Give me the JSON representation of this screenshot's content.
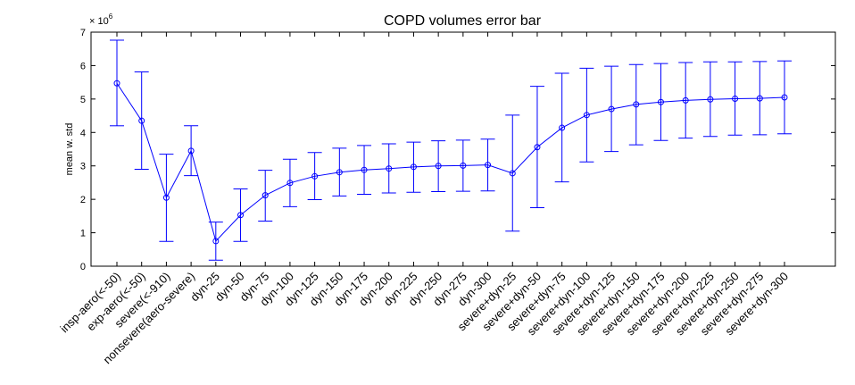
{
  "chart_data": {
    "type": "line",
    "title": "COPD volumes error bar",
    "ylabel": "mean w. std",
    "y_multiplier_base": "× 10",
    "y_multiplier_exp": "6",
    "ylim": [
      0,
      7
    ],
    "yticks": [
      "0",
      "1",
      "2",
      "3",
      "4",
      "5",
      "6",
      "7"
    ],
    "grid": false,
    "categories": [
      "insp-aero(<-50)",
      "exp-aero(<-50)",
      "severe(<-910)",
      "nonsevere(aero-severe)",
      "dyn-25",
      "dyn-50",
      "dyn-75",
      "dyn-100",
      "dyn-125",
      "dyn-150",
      "dyn-175",
      "dyn-200",
      "dyn-225",
      "dyn-250",
      "dyn-275",
      "dyn-300",
      "severe+dyn-25",
      "severe+dyn-50",
      "severe+dyn-75",
      "severe+dyn-100",
      "severe+dyn-125",
      "severe+dyn-150",
      "severe+dyn-175",
      "severe+dyn-200",
      "severe+dyn-225",
      "severe+dyn-250",
      "severe+dyn-275",
      "severe+dyn-300"
    ],
    "series": [
      {
        "color": "#0000ff",
        "values": [
          5.47,
          4.35,
          2.05,
          3.45,
          0.75,
          1.53,
          2.12,
          2.49,
          2.69,
          2.81,
          2.88,
          2.92,
          2.97,
          3.0,
          3.01,
          3.03,
          2.78,
          3.56,
          4.14,
          4.52,
          4.7,
          4.84,
          4.91,
          4.96,
          4.99,
          5.01,
          5.02,
          5.05
        ],
        "lower": [
          4.2,
          2.9,
          0.74,
          2.71,
          0.18,
          0.74,
          1.35,
          1.78,
          1.99,
          2.1,
          2.15,
          2.19,
          2.21,
          2.23,
          2.24,
          2.25,
          1.05,
          1.75,
          2.52,
          3.12,
          3.43,
          3.63,
          3.76,
          3.83,
          3.88,
          3.92,
          3.93,
          3.96
        ],
        "upper": [
          6.76,
          5.81,
          3.35,
          4.2,
          1.32,
          2.31,
          2.87,
          3.2,
          3.4,
          3.53,
          3.61,
          3.66,
          3.71,
          3.75,
          3.77,
          3.8,
          4.52,
          5.38,
          5.77,
          5.92,
          5.98,
          6.03,
          6.06,
          6.09,
          6.11,
          6.11,
          6.12,
          6.14
        ]
      }
    ]
  }
}
